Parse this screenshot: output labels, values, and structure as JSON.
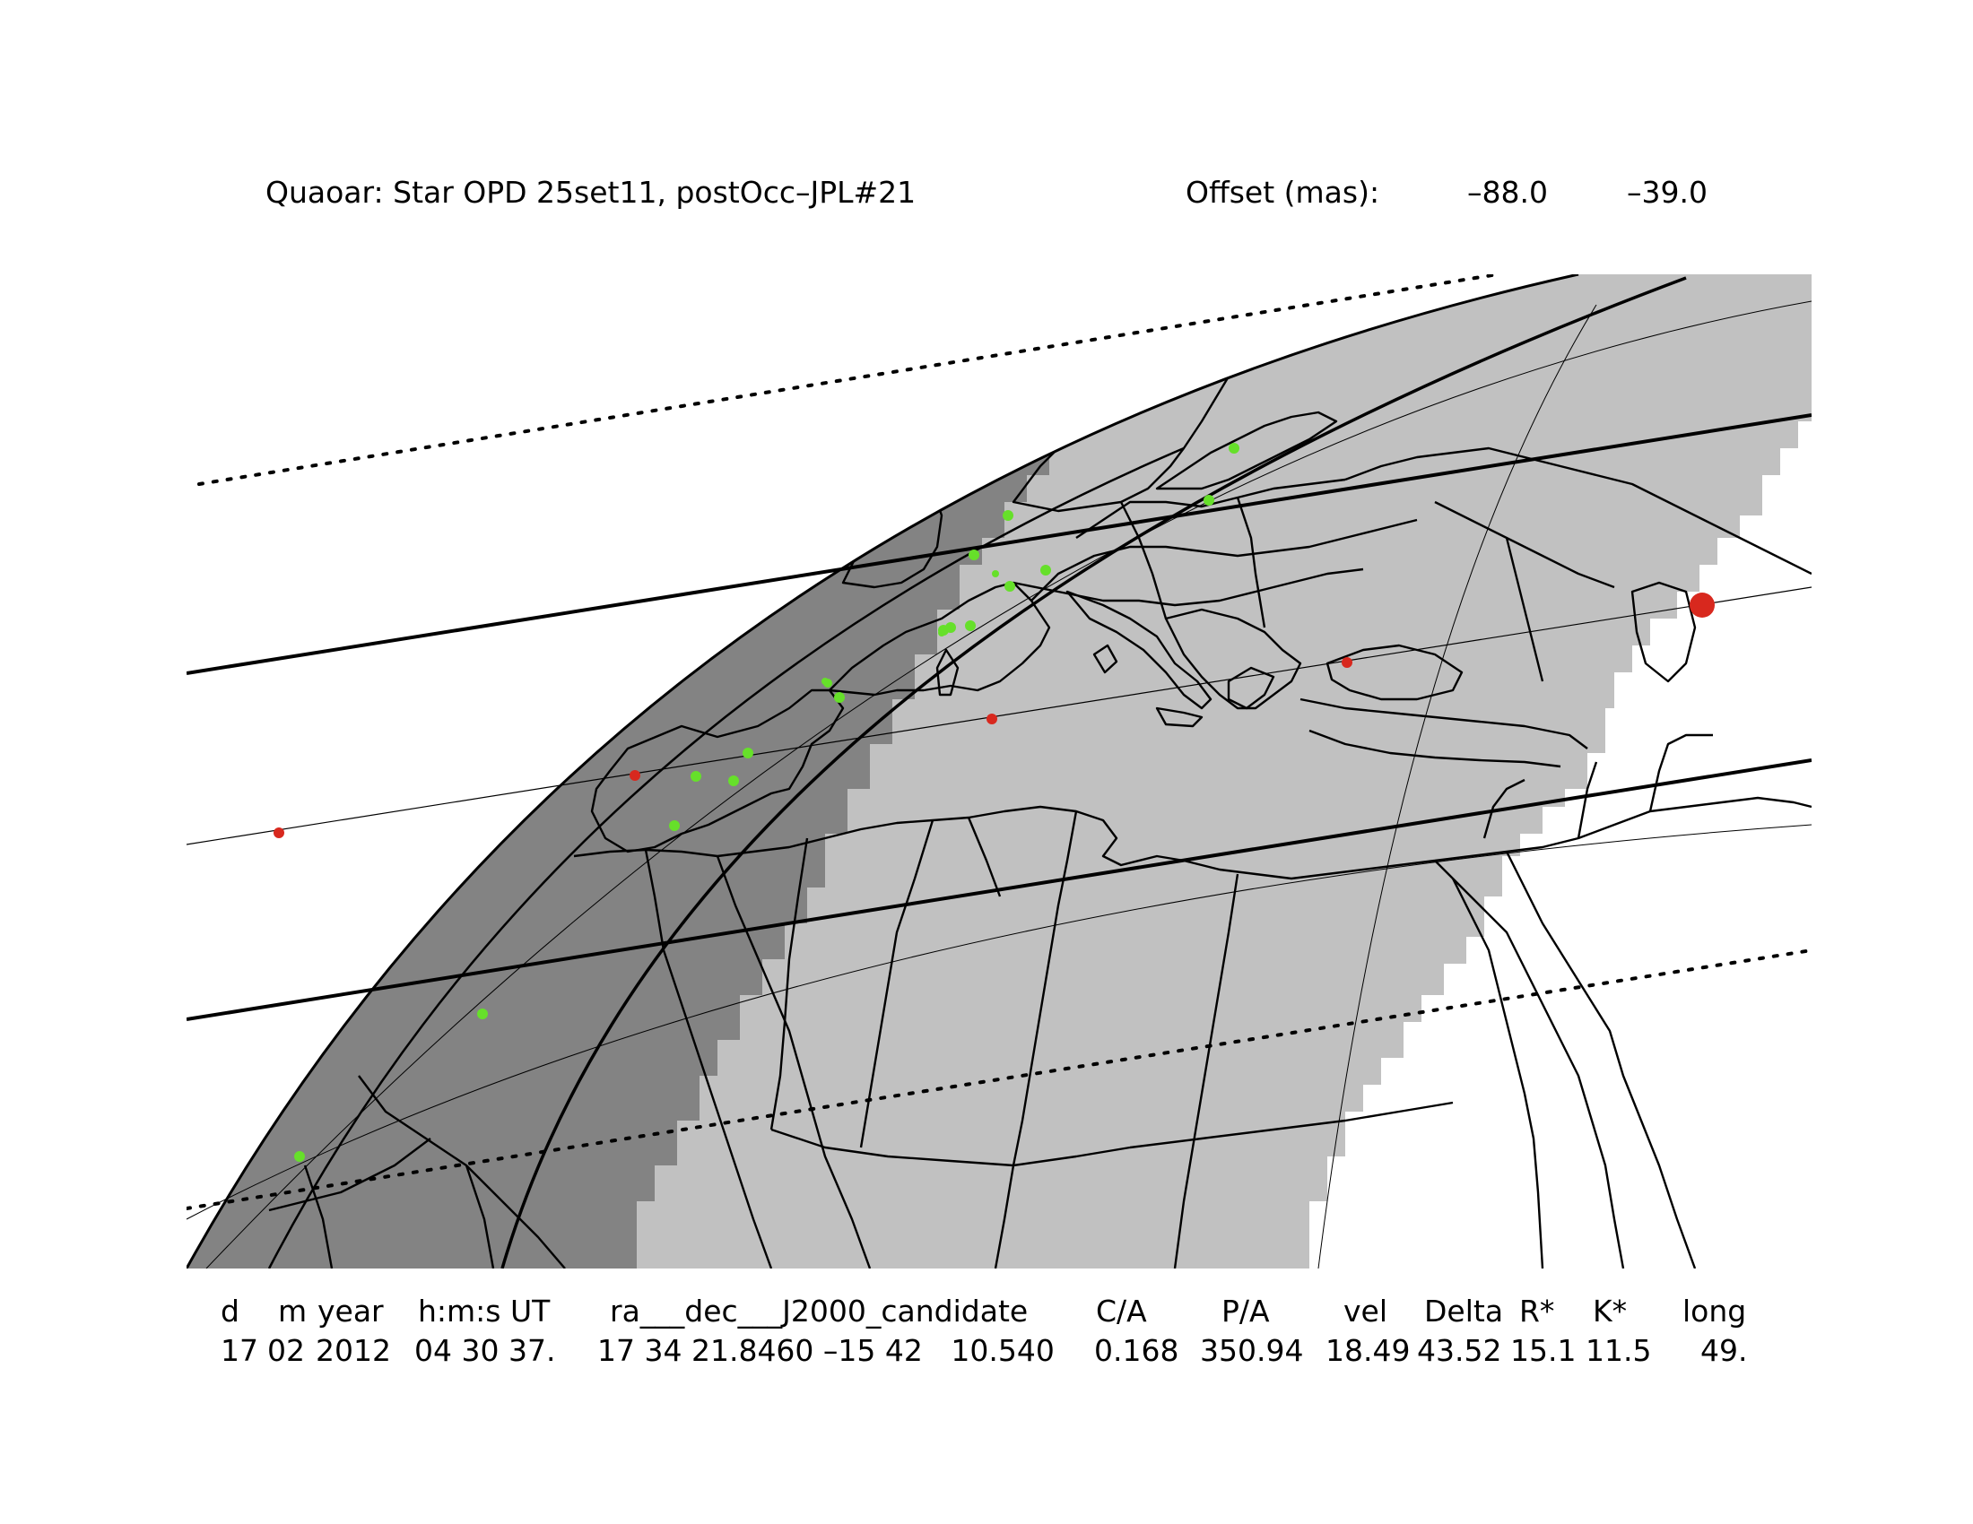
{
  "header": {
    "title": "Quaoar: Star OPD 25set11, postOcc–JPL#21",
    "offset_label": "Offset (mas):",
    "offset_ra": "–88.0",
    "offset_dec": "–39.0"
  },
  "table": {
    "columns": [
      {
        "key": "d",
        "header": "d",
        "value": "17"
      },
      {
        "key": "m",
        "header": "m",
        "value": "02"
      },
      {
        "key": "year",
        "header": "year",
        "value": "2012"
      },
      {
        "key": "hms",
        "header": "h:m:s UT",
        "value": "04 30 37."
      },
      {
        "key": "radec",
        "header": "ra___dec___J2000_candidate",
        "value": "17 34 21.8460 –15 42   10.540"
      },
      {
        "key": "ca",
        "header": "C/A",
        "value": "0.168"
      },
      {
        "key": "pa",
        "header": "P/A",
        "value": "350.94"
      },
      {
        "key": "vel",
        "header": "vel",
        "value": "18.49"
      },
      {
        "key": "delta",
        "header": "Delta",
        "value": "43.52"
      },
      {
        "key": "rstar",
        "header": "R*",
        "value": "15.1"
      },
      {
        "key": "kstar",
        "header": "K*",
        "value": "11.5"
      },
      {
        "key": "long",
        "header": "long",
        "value": "49."
      }
    ]
  },
  "map": {
    "colors": {
      "background": "#ffffff",
      "night": "#838383",
      "twilight": "#c1c1c1",
      "lines": "#000000",
      "observer": "#66e02a",
      "time_marker": "#d8281e"
    },
    "observer_sites": 20,
    "time_markers": 5
  }
}
